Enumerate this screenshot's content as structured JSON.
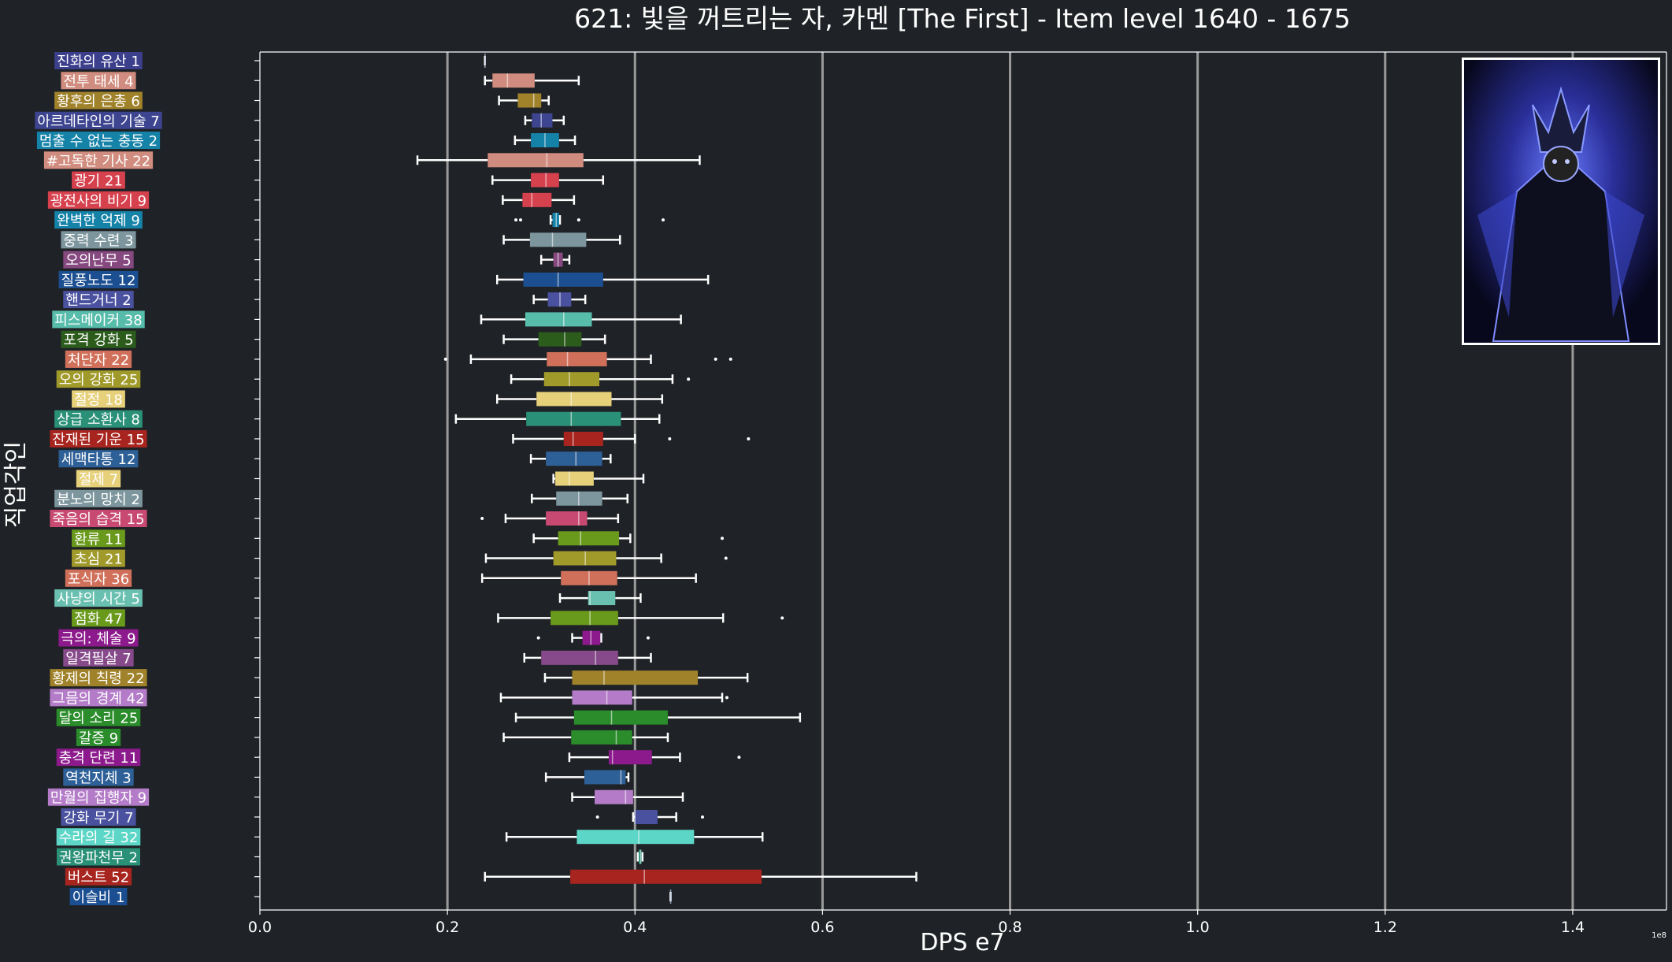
{
  "chart_data": {
    "type": "boxplot",
    "title": "621: 빛을 꺼트리는 자, 카멘 [The First] - Item level 1640 - 1675",
    "xlabel": "DPS e7",
    "ylabel": "직업각인",
    "offset_text": "1e8",
    "xlim": [
      0,
      1.5
    ],
    "xticks": [
      0.0,
      0.2,
      0.4,
      0.6,
      0.8,
      1.0,
      1.2,
      1.4
    ],
    "xtick_labels": [
      "0.0",
      "0.2",
      "0.4",
      "0.6",
      "0.8",
      "1.0",
      "1.2",
      "1.4"
    ],
    "grid": "vertical",
    "orientation": "horizontal",
    "categories": [
      {
        "label": "진화의 유산 1",
        "color": "#3b3f8c",
        "whislo": 0.24,
        "q1": 0.24,
        "med": 0.24,
        "q3": 0.24,
        "whishi": 0.24,
        "outliers": []
      },
      {
        "label": "전투 태세 4",
        "color": "#d08c7e",
        "whislo": 0.24,
        "q1": 0.248,
        "med": 0.264,
        "q3": 0.293,
        "whishi": 0.34,
        "outliers": []
      },
      {
        "label": "황후의 은총 6",
        "color": "#a0822a",
        "whislo": 0.255,
        "q1": 0.275,
        "med": 0.292,
        "q3": 0.3,
        "whishi": 0.308,
        "outliers": []
      },
      {
        "label": "아르데타인의 기술 7",
        "color": "#3d4590",
        "whislo": 0.283,
        "q1": 0.29,
        "med": 0.3,
        "q3": 0.312,
        "whishi": 0.324,
        "outliers": []
      },
      {
        "label": "멈출 수 없는 충동 2",
        "color": "#1582a8",
        "whislo": 0.272,
        "q1": 0.289,
        "med": 0.304,
        "q3": 0.319,
        "whishi": 0.336,
        "outliers": []
      },
      {
        "label": "#고독한 기사 22",
        "color": "#d08c7e",
        "whislo": 0.168,
        "q1": 0.243,
        "med": 0.306,
        "q3": 0.345,
        "whishi": 0.469,
        "outliers": []
      },
      {
        "label": "광기 21",
        "color": "#d6414e",
        "whislo": 0.248,
        "q1": 0.289,
        "med": 0.305,
        "q3": 0.319,
        "whishi": 0.366,
        "outliers": []
      },
      {
        "label": "광전사의 비기 9",
        "color": "#d6414e",
        "whislo": 0.259,
        "q1": 0.28,
        "med": 0.29,
        "q3": 0.311,
        "whishi": 0.335,
        "outliers": []
      },
      {
        "label": "완벽한 억제 9",
        "color": "#1582a8",
        "whislo": 0.31,
        "q1": 0.312,
        "med": 0.316,
        "q3": 0.319,
        "whishi": 0.32,
        "outliers": [
          0.273,
          0.278,
          0.34,
          0.43
        ]
      },
      {
        "label": "중력 수련 3",
        "color": "#7d969e",
        "whislo": 0.26,
        "q1": 0.288,
        "med": 0.312,
        "q3": 0.348,
        "whishi": 0.384,
        "outliers": []
      },
      {
        "label": "오의난무 5",
        "color": "#85487f",
        "whislo": 0.3,
        "q1": 0.313,
        "med": 0.318,
        "q3": 0.323,
        "whishi": 0.33,
        "outliers": []
      },
      {
        "label": "질풍노도 12",
        "color": "#1c4f91",
        "whislo": 0.253,
        "q1": 0.281,
        "med": 0.318,
        "q3": 0.366,
        "whishi": 0.478,
        "outliers": []
      },
      {
        "label": "핸드거너 2",
        "color": "#4a52a0",
        "whislo": 0.292,
        "q1": 0.307,
        "med": 0.32,
        "q3": 0.332,
        "whishi": 0.347,
        "outliers": []
      },
      {
        "label": "피스메이커 38",
        "color": "#58bcab",
        "whislo": 0.236,
        "q1": 0.283,
        "med": 0.324,
        "q3": 0.354,
        "whishi": 0.449,
        "outliers": []
      },
      {
        "label": "포격 강화 5",
        "color": "#2c5c1c",
        "whislo": 0.26,
        "q1": 0.297,
        "med": 0.325,
        "q3": 0.343,
        "whishi": 0.368,
        "outliers": []
      },
      {
        "label": "처단자 22",
        "color": "#d0705a",
        "whislo": 0.225,
        "q1": 0.306,
        "med": 0.328,
        "q3": 0.37,
        "whishi": 0.417,
        "outliers": [
          0.198,
          0.486,
          0.502
        ]
      },
      {
        "label": "오의 강화 25",
        "color": "#a09a2a",
        "whislo": 0.268,
        "q1": 0.303,
        "med": 0.33,
        "q3": 0.362,
        "whishi": 0.44,
        "outliers": [
          0.457
        ]
      },
      {
        "label": "절정 18",
        "color": "#e6d07a",
        "whislo": 0.253,
        "q1": 0.295,
        "med": 0.332,
        "q3": 0.375,
        "whishi": 0.429,
        "outliers": []
      },
      {
        "label": "상급 소환사 8",
        "color": "#2a9078",
        "whislo": 0.209,
        "q1": 0.284,
        "med": 0.332,
        "q3": 0.385,
        "whishi": 0.426,
        "outliers": []
      },
      {
        "label": "잔재된 기운 15",
        "color": "#a8251f",
        "whislo": 0.27,
        "q1": 0.324,
        "med": 0.334,
        "q3": 0.366,
        "whishi": 0.4,
        "outliers": [
          0.437,
          0.521
        ]
      },
      {
        "label": "세맥타통 12",
        "color": "#2e6098",
        "whislo": 0.289,
        "q1": 0.305,
        "med": 0.337,
        "q3": 0.365,
        "whishi": 0.374,
        "outliers": []
      },
      {
        "label": "절제 7",
        "color": "#e6d07a",
        "whislo": 0.313,
        "q1": 0.315,
        "med": 0.33,
        "q3": 0.356,
        "whishi": 0.409,
        "outliers": []
      },
      {
        "label": "분노의 망치 2",
        "color": "#7d969e",
        "whislo": 0.29,
        "q1": 0.316,
        "med": 0.34,
        "q3": 0.365,
        "whishi": 0.392,
        "outliers": []
      },
      {
        "label": "죽음의 습격 15",
        "color": "#c84a72",
        "whislo": 0.262,
        "q1": 0.305,
        "med": 0.34,
        "q3": 0.349,
        "whishi": 0.382,
        "outliers": [
          0.237
        ]
      },
      {
        "label": "환류 11",
        "color": "#6a9a1c",
        "whislo": 0.292,
        "q1": 0.318,
        "med": 0.342,
        "q3": 0.383,
        "whishi": 0.395,
        "outliers": [
          0.493
        ]
      },
      {
        "label": "초심 21",
        "color": "#a09a2a",
        "whislo": 0.241,
        "q1": 0.313,
        "med": 0.347,
        "q3": 0.38,
        "whishi": 0.428,
        "outliers": [
          0.497
        ]
      },
      {
        "label": "포식자 36",
        "color": "#d0705a",
        "whislo": 0.237,
        "q1": 0.321,
        "med": 0.351,
        "q3": 0.381,
        "whishi": 0.465,
        "outliers": []
      },
      {
        "label": "사냥의 시간 5",
        "color": "#6ac0b0",
        "whislo": 0.32,
        "q1": 0.35,
        "med": 0.352,
        "q3": 0.379,
        "whishi": 0.406,
        "outliers": []
      },
      {
        "label": "점화 47",
        "color": "#6a9a1c",
        "whislo": 0.254,
        "q1": 0.31,
        "med": 0.352,
        "q3": 0.382,
        "whishi": 0.494,
        "outliers": [
          0.557
        ]
      },
      {
        "label": "극의: 체술 9",
        "color": "#8c1a8c",
        "whislo": 0.333,
        "q1": 0.344,
        "med": 0.353,
        "q3": 0.363,
        "whishi": 0.364,
        "outliers": [
          0.297,
          0.414
        ]
      },
      {
        "label": "일격필살 7",
        "color": "#864a8a",
        "whislo": 0.282,
        "q1": 0.3,
        "med": 0.358,
        "q3": 0.382,
        "whishi": 0.417,
        "outliers": []
      },
      {
        "label": "황제의 칙령 22",
        "color": "#a0822a",
        "whislo": 0.304,
        "q1": 0.333,
        "med": 0.367,
        "q3": 0.467,
        "whishi": 0.52,
        "outliers": []
      },
      {
        "label": "그믐의 경계 42",
        "color": "#b47cc8",
        "whislo": 0.257,
        "q1": 0.333,
        "med": 0.37,
        "q3": 0.397,
        "whishi": 0.493,
        "outliers": [
          0.498
        ]
      },
      {
        "label": "달의 소리 25",
        "color": "#2a8c2a",
        "whislo": 0.273,
        "q1": 0.335,
        "med": 0.375,
        "q3": 0.435,
        "whishi": 0.576,
        "outliers": []
      },
      {
        "label": "갈증 9",
        "color": "#2a8c2a",
        "whislo": 0.26,
        "q1": 0.332,
        "med": 0.38,
        "q3": 0.397,
        "whishi": 0.435,
        "outliers": []
      },
      {
        "label": "충격 단련 11",
        "color": "#8c1a8c",
        "whislo": 0.33,
        "q1": 0.372,
        "med": 0.376,
        "q3": 0.418,
        "whishi": 0.448,
        "outliers": [
          0.511
        ]
      },
      {
        "label": "역천지체 3",
        "color": "#2e6098",
        "whislo": 0.305,
        "q1": 0.346,
        "med": 0.385,
        "q3": 0.39,
        "whishi": 0.393,
        "outliers": []
      },
      {
        "label": "만월의 집행자 9",
        "color": "#b47cc8",
        "whislo": 0.333,
        "q1": 0.357,
        "med": 0.39,
        "q3": 0.398,
        "whishi": 0.451,
        "outliers": []
      },
      {
        "label": "강화 무기 7",
        "color": "#4a52a0",
        "whislo": 0.398,
        "q1": 0.4,
        "med": 0.4,
        "q3": 0.424,
        "whishi": 0.444,
        "outliers": [
          0.36,
          0.472
        ]
      },
      {
        "label": "수라의 길 32",
        "color": "#5cd6c6",
        "whislo": 0.263,
        "q1": 0.338,
        "med": 0.404,
        "q3": 0.463,
        "whishi": 0.536,
        "outliers": []
      },
      {
        "label": "권왕파천무 2",
        "color": "#2a9078",
        "whislo": 0.403,
        "q1": 0.404,
        "med": 0.406,
        "q3": 0.407,
        "whishi": 0.408,
        "outliers": []
      },
      {
        "label": "버스트 52",
        "color": "#a8251f",
        "whislo": 0.24,
        "q1": 0.331,
        "med": 0.41,
        "q3": 0.535,
        "whishi": 0.7,
        "outliers": []
      },
      {
        "label": "이슬비 1",
        "color": "#1c4f91",
        "whislo": 0.438,
        "q1": 0.438,
        "med": 0.438,
        "q3": 0.438,
        "whishi": 0.438,
        "outliers": []
      }
    ]
  },
  "portrait": {
    "name": "boss-portrait",
    "colors": [
      "#0a0b2a",
      "#2a3cc8",
      "#5a70ff",
      "#1a1a1a"
    ]
  }
}
